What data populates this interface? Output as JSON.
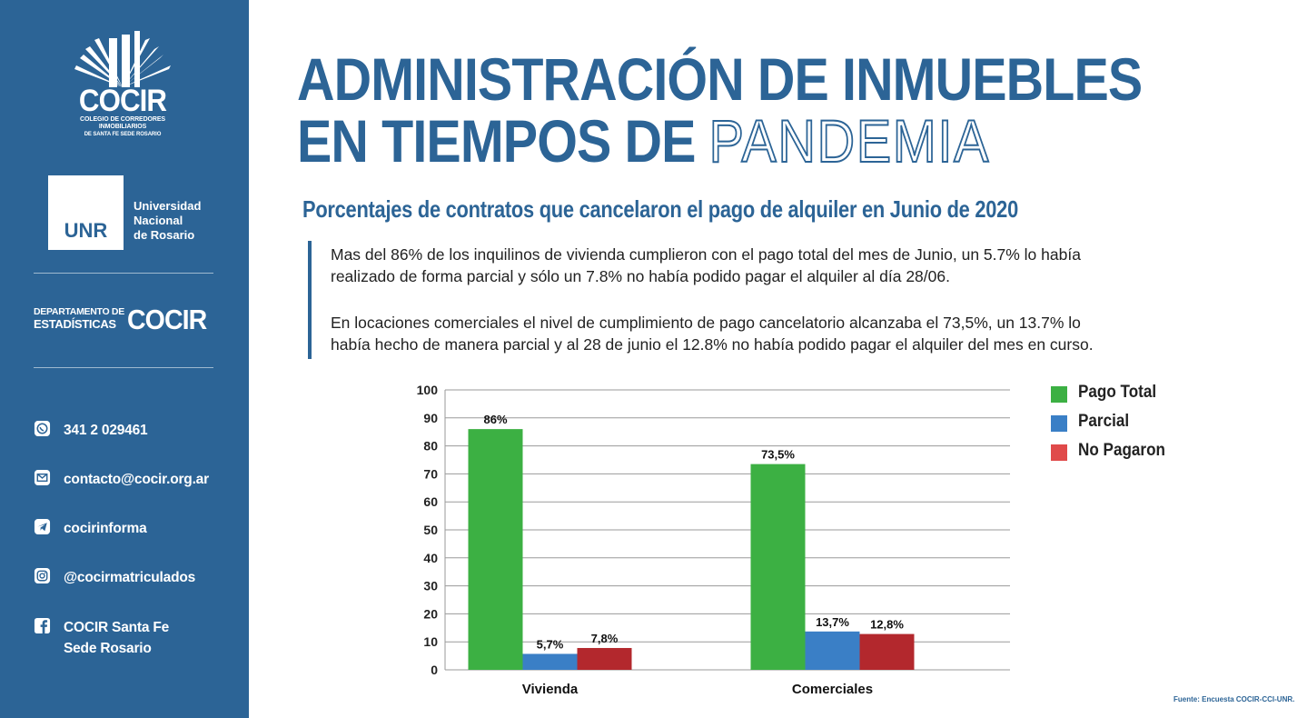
{
  "sidebar": {
    "cocir_logo": {
      "name": "COCIR",
      "sub1": "COLEGIO DE CORREDORES",
      "sub2": "INMOBILIARIOS",
      "sub3": "DE SANTA FE SEDE ROSARIO"
    },
    "unr": {
      "abbr": "UNR",
      "line1": "Universidad",
      "line2": "Nacional",
      "line3": "de Rosario"
    },
    "dept": {
      "line1": "DEPARTAMENTO DE",
      "line2": "ESTADÍSTICAS",
      "brand": "COCIR"
    },
    "contacts": [
      {
        "icon": "whatsapp-icon",
        "text": "341 2 029461"
      },
      {
        "icon": "mail-icon",
        "text": "contacto@cocir.org.ar"
      },
      {
        "icon": "telegram-icon",
        "text": "cocirinforma"
      },
      {
        "icon": "instagram-icon",
        "text": "@cocirmatriculados"
      },
      {
        "icon": "facebook-icon",
        "text": "COCIR Santa Fe",
        "text2": "Sede Rosario"
      }
    ]
  },
  "main": {
    "title_line1": "ADMINISTRACIÓN DE INMUEBLES",
    "title_line2_solid": "EN TIEMPOS DE",
    "title_line2_outline": "PANDEMIA",
    "subtitle": "Porcentajes de contratos que cancelaron el pago de alquiler en Junio de 2020",
    "para1_l1": "Mas del 86% de los inquilinos de vivienda cumplieron con el pago total del mes de Junio, un 5.7% lo había",
    "para1_l2": "realizado de forma parcial y sólo un 7.8% no había podido pagar el alquiler al día 28/06.",
    "para2_l1": "En locaciones comerciales el nivel de cumplimiento de pago cancelatorio alcanzaba el 73,5%, un 13.7% lo",
    "para2_l2": "había hecho de manera parcial y al 28 de junio el 12.8% no había podido pagar el alquiler del mes en curso.",
    "source": "Fuente: Encuesta COCIR-CCI-UNR."
  },
  "colors": {
    "brand_blue": "#2c6496",
    "pago_total": "#3cb043",
    "parcial": "#3a7fc6",
    "no_pagaron": "#b3282d"
  },
  "chart_data": {
    "type": "bar",
    "title": "",
    "xlabel": "",
    "ylabel": "",
    "ylim": [
      0,
      100
    ],
    "yticks": [
      0,
      10,
      20,
      30,
      40,
      50,
      60,
      70,
      80,
      90,
      100
    ],
    "grid": true,
    "legend_position": "right",
    "categories": [
      "Vivienda",
      "Comerciales"
    ],
    "series": [
      {
        "name": "Pago Total",
        "values": [
          86,
          73.5
        ],
        "labels": [
          "86%",
          "73,5%"
        ]
      },
      {
        "name": "Parcial",
        "values": [
          5.7,
          13.7
        ],
        "labels": [
          "5,7%",
          "13,7%"
        ]
      },
      {
        "name": "No Pagaron",
        "values": [
          7.8,
          12.8
        ],
        "labels": [
          "7,8%",
          "12,8%"
        ]
      }
    ]
  }
}
